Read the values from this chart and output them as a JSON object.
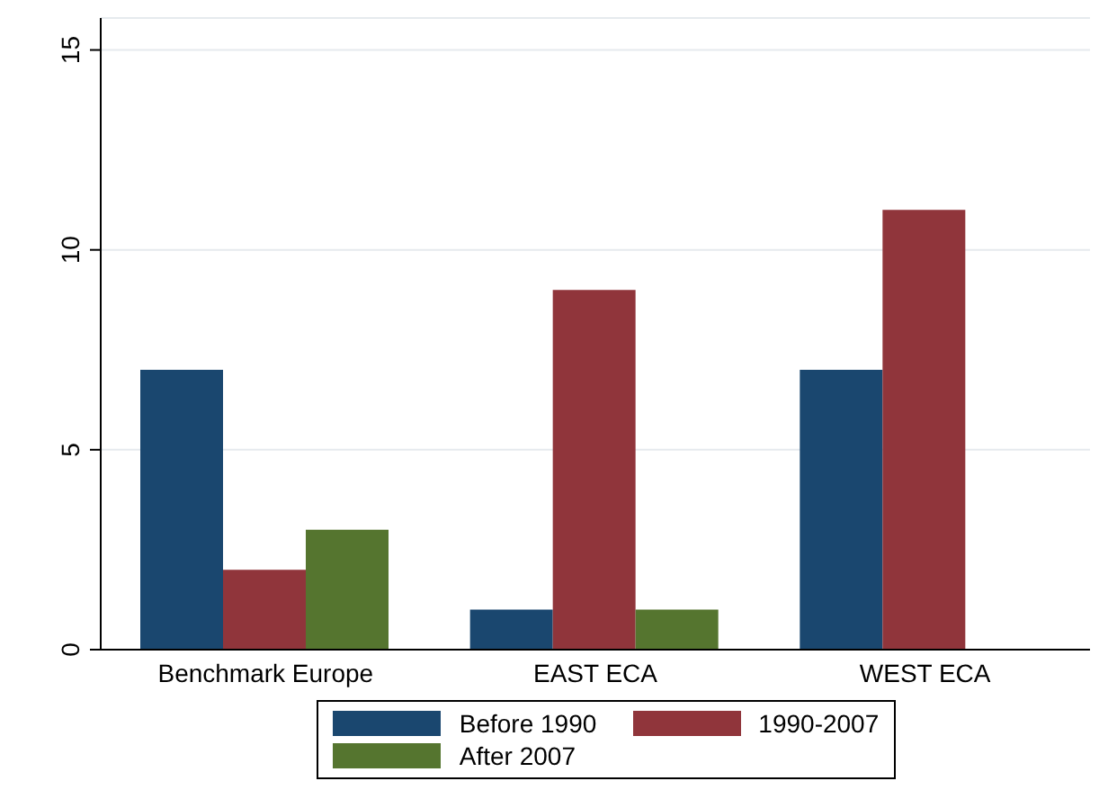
{
  "chart_data": {
    "type": "bar",
    "categories": [
      "Benchmark Europe",
      "EAST ECA",
      "WEST ECA"
    ],
    "series": [
      {
        "name": "Before 1990",
        "color": "#1a476f",
        "values": [
          7,
          1,
          7
        ]
      },
      {
        "name": "1990-2007",
        "color": "#90353b",
        "values": [
          2,
          9,
          11
        ]
      },
      {
        "name": "After 2007",
        "color": "#55752f",
        "values": [
          3,
          1,
          0
        ]
      }
    ],
    "ylim": [
      0,
      15.8
    ],
    "yticks": [
      0,
      5,
      10,
      15
    ],
    "grid": "y",
    "legend": "bottom"
  }
}
